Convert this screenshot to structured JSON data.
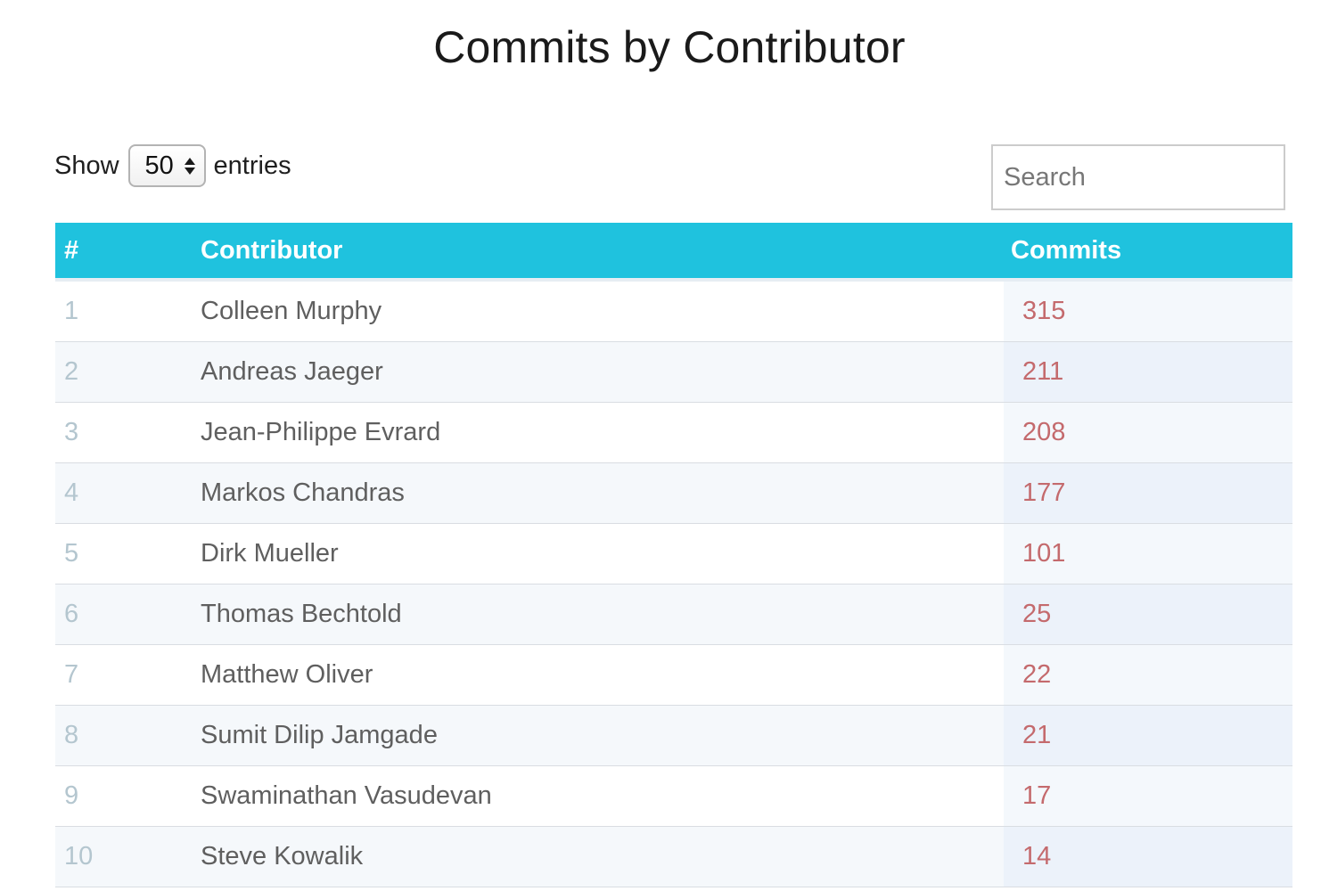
{
  "page": {
    "title": "Commits by Contributor"
  },
  "controls": {
    "show_label": "Show",
    "page_length_value": "50",
    "entries_label": "entries",
    "search_placeholder": "Search"
  },
  "table": {
    "columns": [
      "#",
      "Contributor",
      "Commits"
    ],
    "rows": [
      {
        "rank": "1",
        "contributor": "Colleen Murphy",
        "commits": "315"
      },
      {
        "rank": "2",
        "contributor": "Andreas Jaeger",
        "commits": "211"
      },
      {
        "rank": "3",
        "contributor": "Jean-Philippe Evrard",
        "commits": "208"
      },
      {
        "rank": "4",
        "contributor": "Markos Chandras",
        "commits": "177"
      },
      {
        "rank": "5",
        "contributor": "Dirk Mueller",
        "commits": "101"
      },
      {
        "rank": "6",
        "contributor": "Thomas Bechtold",
        "commits": "25"
      },
      {
        "rank": "7",
        "contributor": "Matthew Oliver",
        "commits": "22"
      },
      {
        "rank": "8",
        "contributor": "Sumit Dilip Jamgade",
        "commits": "21"
      },
      {
        "rank": "9",
        "contributor": "Swaminathan Vasudevan",
        "commits": "17"
      },
      {
        "rank": "10",
        "contributor": "Steve Kowalik",
        "commits": "14"
      }
    ]
  },
  "colors": {
    "header_background": "#1fc2de",
    "header_text": "#ffffff",
    "rank_text": "#b4c6cf",
    "name_text": "#5f5f5f",
    "commits_text": "#c46a6d",
    "row_stripe": "#f5f8fb"
  },
  "icons": {
    "page_length_spinner": "up-down-arrows-icon"
  }
}
